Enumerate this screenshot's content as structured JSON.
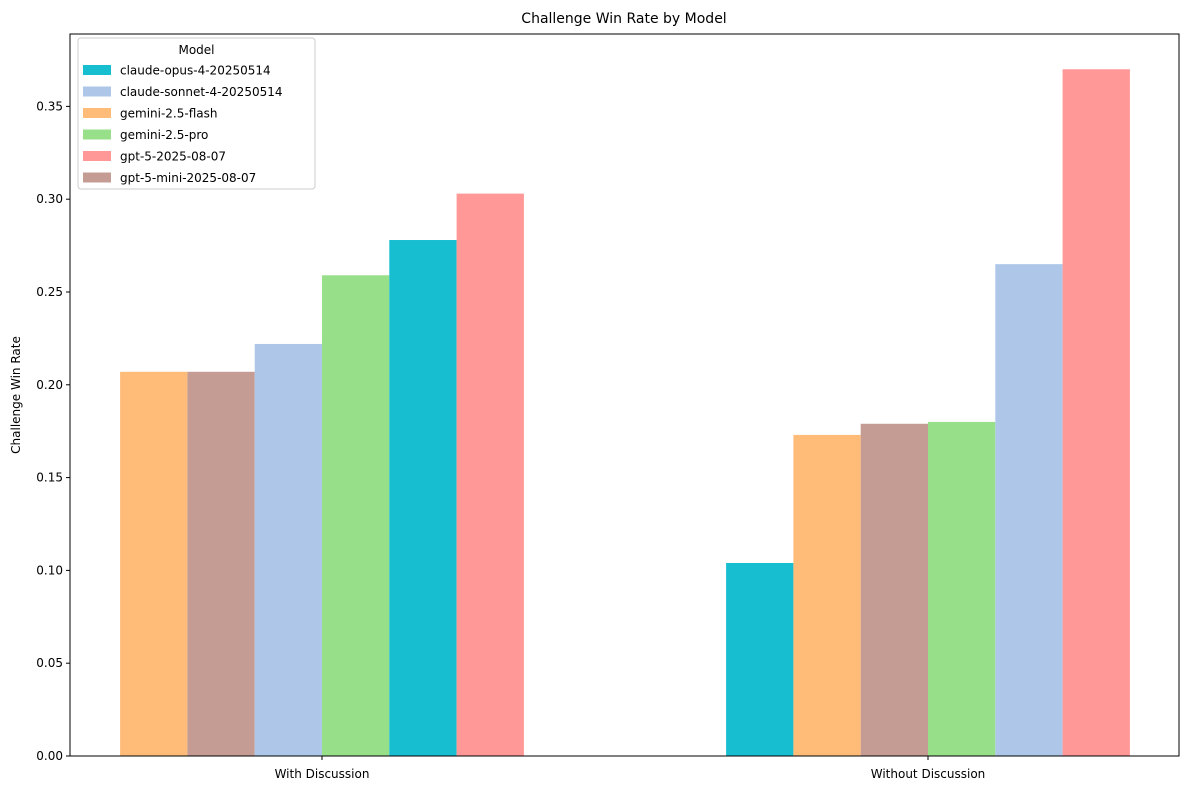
{
  "chart_data": {
    "type": "bar",
    "title": "Challenge Win Rate by Model",
    "ylabel": "Challenge Win Rate",
    "xlabel": "",
    "ylim": [
      0,
      0.389
    ],
    "yticks": [
      0.0,
      0.05,
      0.1,
      0.15,
      0.2,
      0.25,
      0.3,
      0.35
    ],
    "ytick_labels": [
      "0.00",
      "0.05",
      "0.10",
      "0.15",
      "0.20",
      "0.25",
      "0.30",
      "0.35"
    ],
    "grid": false,
    "legend": {
      "title": "Model",
      "placement": "top-left",
      "entries": [
        {
          "name": "claude-opus-4-20250514",
          "color": "#17becf"
        },
        {
          "name": "claude-sonnet-4-20250514",
          "color": "#aec7e8"
        },
        {
          "name": "gemini-2.5-flash",
          "color": "#ffbb78"
        },
        {
          "name": "gemini-2.5-pro",
          "color": "#98df8a"
        },
        {
          "name": "gpt-5-2025-08-07",
          "color": "#ff9896"
        },
        {
          "name": "gpt-5-mini-2025-08-07",
          "color": "#c49c94"
        }
      ]
    },
    "groups": [
      {
        "category": "With Discussion",
        "bars": [
          {
            "model": "gemini-2.5-flash",
            "value": 0.207
          },
          {
            "model": "gpt-5-mini-2025-08-07",
            "value": 0.207
          },
          {
            "model": "claude-sonnet-4-20250514",
            "value": 0.222
          },
          {
            "model": "gemini-2.5-pro",
            "value": 0.259
          },
          {
            "model": "claude-opus-4-20250514",
            "value": 0.278
          },
          {
            "model": "gpt-5-2025-08-07",
            "value": 0.303
          }
        ]
      },
      {
        "category": "Without Discussion",
        "bars": [
          {
            "model": "claude-opus-4-20250514",
            "value": 0.104
          },
          {
            "model": "gemini-2.5-flash",
            "value": 0.173
          },
          {
            "model": "gpt-5-mini-2025-08-07",
            "value": 0.179
          },
          {
            "model": "gemini-2.5-pro",
            "value": 0.18
          },
          {
            "model": "claude-sonnet-4-20250514",
            "value": 0.265
          },
          {
            "model": "gpt-5-2025-08-07",
            "value": 0.37
          }
        ]
      }
    ]
  }
}
